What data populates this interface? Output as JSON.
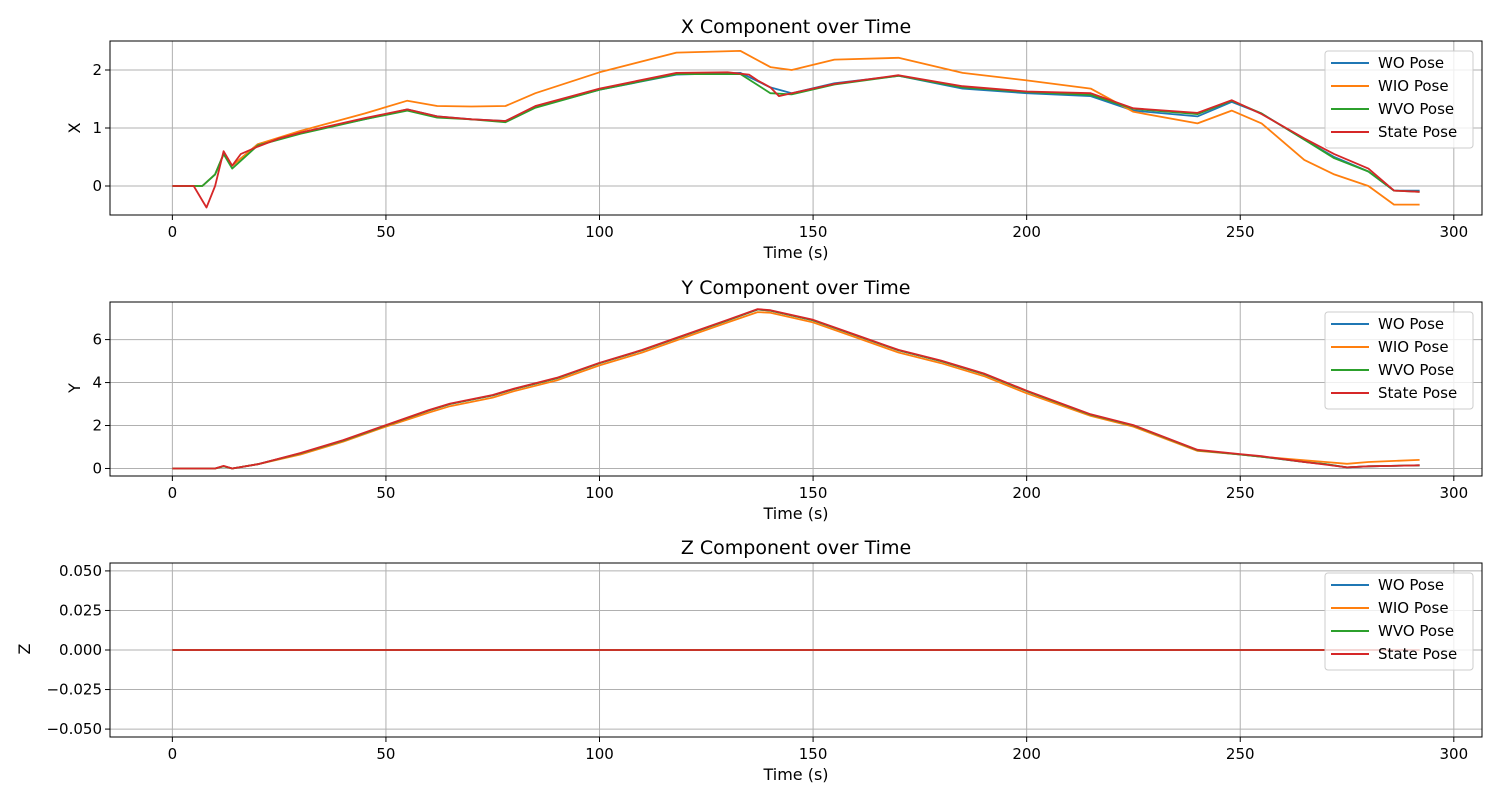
{
  "chart_data": [
    {
      "type": "line",
      "title": "X Component over Time",
      "xlabel": "Time (s)",
      "ylabel": "X",
      "xlim": [
        -14.6,
        306.6
      ],
      "ylim": [
        -0.5,
        2.5
      ],
      "xticks": [
        0,
        50,
        100,
        150,
        200,
        250,
        300
      ],
      "yticks": [
        0,
        1,
        2
      ],
      "ytick_labels": [
        "0",
        "1",
        "2"
      ],
      "grid": true,
      "legend_position": "top-right",
      "series": [
        {
          "name": "WO Pose",
          "color": "#1f77b4",
          "x": [
            0,
            7,
            10,
            12,
            14,
            20,
            30,
            45,
            55,
            62,
            70,
            78,
            85,
            100,
            118,
            133,
            140,
            145,
            155,
            170,
            185,
            200,
            215,
            225,
            240,
            248,
            255,
            265,
            272,
            280,
            286,
            292
          ],
          "y": [
            0,
            0,
            0.2,
            0.55,
            0.35,
            0.72,
            0.92,
            1.15,
            1.32,
            1.2,
            1.15,
            1.12,
            1.36,
            1.66,
            1.92,
            1.95,
            1.7,
            1.6,
            1.77,
            1.9,
            1.68,
            1.6,
            1.55,
            1.3,
            1.2,
            1.45,
            1.25,
            0.8,
            0.5,
            0.25,
            -0.08,
            -0.08
          ]
        },
        {
          "name": "WIO Pose",
          "color": "#ff7f0e",
          "x": [
            0,
            7,
            10,
            12,
            14,
            20,
            30,
            45,
            55,
            62,
            70,
            78,
            85,
            100,
            118,
            133,
            140,
            145,
            155,
            170,
            185,
            200,
            215,
            225,
            240,
            248,
            255,
            265,
            272,
            280,
            286,
            292
          ],
          "y": [
            0,
            0,
            0.2,
            0.55,
            0.35,
            0.72,
            0.95,
            1.25,
            1.47,
            1.38,
            1.37,
            1.38,
            1.6,
            1.96,
            2.3,
            2.33,
            2.05,
            2.0,
            2.18,
            2.21,
            1.95,
            1.82,
            1.68,
            1.28,
            1.08,
            1.3,
            1.08,
            0.45,
            0.2,
            0.0,
            -0.32,
            -0.32
          ]
        },
        {
          "name": "WVO Pose",
          "color": "#2ca02c",
          "x": [
            0,
            7,
            10,
            12,
            14,
            20,
            30,
            45,
            55,
            62,
            70,
            78,
            85,
            100,
            118,
            133,
            140,
            145,
            155,
            170,
            185,
            200,
            215,
            225,
            240,
            248,
            255,
            265,
            272,
            280,
            286,
            292
          ],
          "y": [
            0,
            0,
            0.2,
            0.55,
            0.3,
            0.7,
            0.9,
            1.15,
            1.3,
            1.18,
            1.15,
            1.1,
            1.35,
            1.66,
            1.93,
            1.93,
            1.6,
            1.58,
            1.75,
            1.9,
            1.7,
            1.62,
            1.57,
            1.33,
            1.24,
            1.47,
            1.25,
            0.8,
            0.48,
            0.25,
            -0.08,
            -0.1
          ]
        },
        {
          "name": "State Pose",
          "color": "#d62728",
          "x": [
            0,
            5,
            7,
            8,
            10,
            12,
            14,
            16,
            20,
            25,
            30,
            45,
            55,
            62,
            70,
            78,
            85,
            100,
            118,
            130,
            135,
            137,
            140,
            142,
            145,
            155,
            170,
            185,
            200,
            215,
            225,
            240,
            248,
            255,
            265,
            272,
            280,
            286,
            292
          ],
          "y": [
            0,
            0,
            -0.25,
            -0.37,
            0.0,
            0.6,
            0.35,
            0.55,
            0.68,
            0.82,
            0.92,
            1.17,
            1.32,
            1.2,
            1.15,
            1.12,
            1.38,
            1.68,
            1.95,
            1.96,
            1.92,
            1.82,
            1.7,
            1.55,
            1.6,
            1.76,
            1.91,
            1.72,
            1.63,
            1.6,
            1.34,
            1.26,
            1.48,
            1.24,
            0.82,
            0.55,
            0.3,
            -0.08,
            -0.1
          ]
        }
      ]
    },
    {
      "type": "line",
      "title": "Y Component over Time",
      "xlabel": "Time (s)",
      "ylabel": "Y",
      "xlim": [
        -14.6,
        306.6
      ],
      "ylim": [
        -0.35,
        7.75
      ],
      "xticks": [
        0,
        50,
        100,
        150,
        200,
        250,
        300
      ],
      "yticks": [
        0,
        2,
        4,
        6
      ],
      "ytick_labels": [
        "0",
        "2",
        "4",
        "6"
      ],
      "grid": true,
      "legend_position": "top-right",
      "series": [
        {
          "name": "WO Pose",
          "color": "#1f77b4",
          "x": [
            0,
            10,
            12,
            14,
            20,
            30,
            40,
            50,
            60,
            65,
            75,
            80,
            90,
            100,
            110,
            120,
            130,
            137,
            140,
            150,
            160,
            170,
            180,
            190,
            200,
            215,
            225,
            240,
            250,
            255,
            265,
            270,
            275,
            280,
            292
          ],
          "y": [
            0,
            0,
            0.1,
            0,
            0.2,
            0.7,
            1.3,
            2.0,
            2.7,
            3.0,
            3.4,
            3.7,
            4.2,
            4.9,
            5.5,
            6.2,
            6.9,
            7.4,
            7.35,
            6.9,
            6.2,
            5.5,
            5.0,
            4.4,
            3.6,
            2.5,
            2.0,
            0.85,
            0.65,
            0.55,
            0.3,
            0.2,
            0.05,
            0.1,
            0.15
          ]
        },
        {
          "name": "WIO Pose",
          "color": "#ff7f0e",
          "x": [
            0,
            10,
            12,
            14,
            20,
            30,
            40,
            50,
            60,
            65,
            75,
            80,
            90,
            100,
            110,
            120,
            130,
            137,
            140,
            150,
            160,
            170,
            180,
            190,
            200,
            215,
            225,
            240,
            250,
            255,
            265,
            270,
            275,
            280,
            292
          ],
          "y": [
            0,
            0,
            0.1,
            0,
            0.2,
            0.65,
            1.25,
            1.95,
            2.6,
            2.9,
            3.3,
            3.6,
            4.1,
            4.8,
            5.4,
            6.1,
            6.8,
            7.28,
            7.25,
            6.8,
            6.1,
            5.4,
            4.9,
            4.3,
            3.5,
            2.45,
            1.95,
            0.82,
            0.65,
            0.55,
            0.38,
            0.3,
            0.22,
            0.3,
            0.4
          ]
        },
        {
          "name": "WVO Pose",
          "color": "#2ca02c",
          "x": [
            0,
            10,
            12,
            14,
            20,
            30,
            40,
            50,
            60,
            65,
            75,
            80,
            90,
            100,
            110,
            120,
            130,
            137,
            140,
            150,
            160,
            170,
            180,
            190,
            200,
            215,
            225,
            240,
            250,
            255,
            265,
            270,
            275,
            280,
            292
          ],
          "y": [
            0,
            0,
            0.1,
            0,
            0.2,
            0.7,
            1.3,
            2.0,
            2.7,
            3.0,
            3.4,
            3.7,
            4.2,
            4.9,
            5.5,
            6.2,
            6.9,
            7.4,
            7.35,
            6.9,
            6.2,
            5.5,
            5.0,
            4.4,
            3.6,
            2.5,
            2.0,
            0.85,
            0.65,
            0.55,
            0.3,
            0.2,
            0.05,
            0.1,
            0.15
          ]
        },
        {
          "name": "State Pose",
          "color": "#d62728",
          "x": [
            0,
            10,
            12,
            14,
            20,
            30,
            40,
            50,
            60,
            65,
            75,
            80,
            90,
            100,
            110,
            120,
            130,
            137,
            140,
            150,
            160,
            170,
            180,
            190,
            200,
            215,
            225,
            240,
            250,
            255,
            265,
            270,
            275,
            280,
            292
          ],
          "y": [
            0,
            0,
            0.12,
            0,
            0.2,
            0.72,
            1.32,
            2.02,
            2.72,
            3.02,
            3.42,
            3.72,
            4.22,
            4.92,
            5.52,
            6.22,
            6.92,
            7.42,
            7.37,
            6.92,
            6.22,
            5.52,
            5.02,
            4.42,
            3.62,
            2.52,
            2.02,
            0.87,
            0.67,
            0.57,
            0.3,
            0.18,
            0.05,
            0.1,
            0.15
          ]
        }
      ]
    },
    {
      "type": "line",
      "title": "Z Component over Time",
      "xlabel": "Time (s)",
      "ylabel": "Z",
      "xlim": [
        -14.6,
        306.6
      ],
      "ylim": [
        -0.055,
        0.055
      ],
      "xticks": [
        0,
        50,
        100,
        150,
        200,
        250,
        300
      ],
      "yticks": [
        -0.05,
        -0.025,
        0,
        0.025,
        0.05
      ],
      "ytick_labels": [
        "−0.050",
        "−0.025",
        "0.000",
        "0.025",
        "0.050"
      ],
      "grid": true,
      "legend_position": "top-right",
      "series": [
        {
          "name": "WO Pose",
          "color": "#1f77b4",
          "x": [
            0,
            292
          ],
          "y": [
            0,
            0
          ]
        },
        {
          "name": "WIO Pose",
          "color": "#ff7f0e",
          "x": [
            0,
            292
          ],
          "y": [
            0,
            0
          ]
        },
        {
          "name": "WVO Pose",
          "color": "#2ca02c",
          "x": [
            0,
            292
          ],
          "y": [
            0,
            0
          ]
        },
        {
          "name": "State Pose",
          "color": "#d62728",
          "x": [
            0,
            292
          ],
          "y": [
            0,
            0
          ]
        }
      ]
    }
  ]
}
